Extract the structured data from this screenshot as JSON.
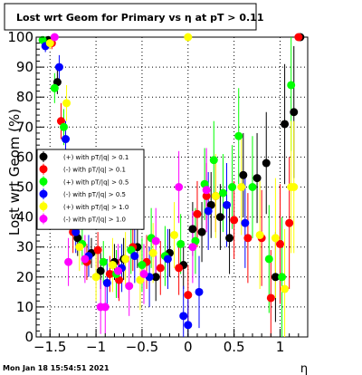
{
  "title": "Lost wrt Geom for Primary vs   η at pT > 0.11",
  "footer": "Mon Jan 18 15:54:51 2021",
  "chart_data": {
    "type": "scatter",
    "xlabel": "η",
    "ylabel": "Lost wrt Geom (%)",
    "xlim": [
      -1.65,
      1.3
    ],
    "ylim": [
      0,
      100
    ],
    "grid": true,
    "legend_position": "left-middle",
    "xticks": [
      -1.5,
      -1,
      -0.5,
      0,
      0.5,
      1
    ],
    "xtick_labels": [
      "−1.5",
      "−1",
      "−0.5",
      "0",
      "0.5",
      "1"
    ],
    "yticks": [
      0,
      10,
      20,
      30,
      40,
      50,
      60,
      70,
      80,
      90,
      100
    ],
    "series": [
      {
        "name": "(+) with pT/|q| > 0.1",
        "color": "#000000",
        "points": [
          {
            "x": -1.52,
            "y": 99,
            "err": 1
          },
          {
            "x": -1.42,
            "y": 85,
            "err": 4
          },
          {
            "x": -1.3,
            "y": 45,
            "err": 6
          },
          {
            "x": -1.2,
            "y": 33,
            "err": 6
          },
          {
            "x": -1.05,
            "y": 28,
            "err": 5
          },
          {
            "x": -0.95,
            "y": 22,
            "err": 6
          },
          {
            "x": -0.8,
            "y": 25,
            "err": 6
          },
          {
            "x": -0.7,
            "y": 26,
            "err": 7
          },
          {
            "x": -0.55,
            "y": 30,
            "err": 7
          },
          {
            "x": -0.35,
            "y": 20,
            "err": 8
          },
          {
            "x": -0.2,
            "y": 28,
            "err": 8
          },
          {
            "x": -0.05,
            "y": 24,
            "err": 8
          },
          {
            "x": 0.05,
            "y": 36,
            "err": 9
          },
          {
            "x": 0.15,
            "y": 35,
            "err": 10
          },
          {
            "x": 0.25,
            "y": 44,
            "err": 11
          },
          {
            "x": 0.35,
            "y": 40,
            "err": 11
          },
          {
            "x": 0.45,
            "y": 33,
            "err": 12
          },
          {
            "x": 0.6,
            "y": 54,
            "err": 14
          },
          {
            "x": 0.75,
            "y": 53,
            "err": 15
          },
          {
            "x": 0.85,
            "y": 58,
            "err": 17
          },
          {
            "x": 0.95,
            "y": 20,
            "err": 15
          },
          {
            "x": 1.05,
            "y": 71,
            "err": 20
          },
          {
            "x": 1.15,
            "y": 75,
            "err": 22
          },
          {
            "x": 1.22,
            "y": 100,
            "err": 0
          }
        ]
      },
      {
        "name": "(-) with pT/|q| > 0.1",
        "color": "#ff0000",
        "points": [
          {
            "x": -1.48,
            "y": 98,
            "err": 2
          },
          {
            "x": -1.38,
            "y": 72,
            "err": 6
          },
          {
            "x": -1.25,
            "y": 35,
            "err": 7
          },
          {
            "x": -1.1,
            "y": 25,
            "err": 6
          },
          {
            "x": -0.98,
            "y": 29,
            "err": 6
          },
          {
            "x": -0.85,
            "y": 21,
            "err": 6
          },
          {
            "x": -0.75,
            "y": 19,
            "err": 7
          },
          {
            "x": -0.6,
            "y": 30,
            "err": 8
          },
          {
            "x": -0.45,
            "y": 25,
            "err": 9
          },
          {
            "x": -0.3,
            "y": 23,
            "err": 9
          },
          {
            "x": -0.1,
            "y": 23,
            "err": 9
          },
          {
            "x": 0.0,
            "y": 14,
            "err": 10
          },
          {
            "x": 0.1,
            "y": 41,
            "err": 11
          },
          {
            "x": 0.2,
            "y": 47,
            "err": 11
          },
          {
            "x": 0.3,
            "y": 47,
            "err": 12
          },
          {
            "x": 0.5,
            "y": 39,
            "err": 13
          },
          {
            "x": 0.65,
            "y": 33,
            "err": 15
          },
          {
            "x": 0.8,
            "y": 33,
            "err": 16
          },
          {
            "x": 0.9,
            "y": 13,
            "err": 16
          },
          {
            "x": 1.0,
            "y": 31,
            "err": 20
          },
          {
            "x": 1.1,
            "y": 38,
            "err": 22
          },
          {
            "x": 1.2,
            "y": 100,
            "err": 0
          }
        ]
      },
      {
        "name": "(+) with pT/|q| > 0.5",
        "color": "#00ff00",
        "points": [
          {
            "x": -1.58,
            "y": 99,
            "err": 1
          },
          {
            "x": -1.45,
            "y": 83,
            "err": 5
          },
          {
            "x": -1.35,
            "y": 70,
            "err": 6
          },
          {
            "x": -1.15,
            "y": 31,
            "err": 7
          },
          {
            "x": -0.92,
            "y": 25,
            "err": 7
          },
          {
            "x": -0.78,
            "y": 21,
            "err": 8
          },
          {
            "x": -0.62,
            "y": 29,
            "err": 8
          },
          {
            "x": -0.5,
            "y": 24,
            "err": 9
          },
          {
            "x": -0.4,
            "y": 33,
            "err": 10
          },
          {
            "x": -0.25,
            "y": 27,
            "err": 10
          },
          {
            "x": -0.08,
            "y": 31,
            "err": 10
          },
          {
            "x": 0.08,
            "y": 32,
            "err": 11
          },
          {
            "x": 0.18,
            "y": 51,
            "err": 12
          },
          {
            "x": 0.28,
            "y": 59,
            "err": 13
          },
          {
            "x": 0.38,
            "y": 48,
            "err": 13
          },
          {
            "x": 0.48,
            "y": 50,
            "err": 14
          },
          {
            "x": 0.55,
            "y": 67,
            "err": 16
          },
          {
            "x": 0.7,
            "y": 50,
            "err": 17
          },
          {
            "x": 0.88,
            "y": 26,
            "err": 18
          },
          {
            "x": 1.02,
            "y": 20,
            "err": 20
          },
          {
            "x": 1.12,
            "y": 84,
            "err": 22
          }
        ]
      },
      {
        "name": "(-) with pT/|q| > 0.5",
        "color": "#0000ff",
        "points": [
          {
            "x": -1.55,
            "y": 97,
            "err": 2
          },
          {
            "x": -1.4,
            "y": 90,
            "err": 4
          },
          {
            "x": -1.33,
            "y": 66,
            "err": 6
          },
          {
            "x": -1.22,
            "y": 35,
            "err": 7
          },
          {
            "x": -1.08,
            "y": 27,
            "err": 7
          },
          {
            "x": -0.88,
            "y": 18,
            "err": 8
          },
          {
            "x": -0.72,
            "y": 23,
            "err": 8
          },
          {
            "x": -0.58,
            "y": 27,
            "err": 9
          },
          {
            "x": -0.42,
            "y": 20,
            "err": 10
          },
          {
            "x": -0.22,
            "y": 26,
            "err": 10
          },
          {
            "x": -0.05,
            "y": 7,
            "err": 10
          },
          {
            "x": 0.0,
            "y": 4,
            "err": 10
          },
          {
            "x": 0.12,
            "y": 15,
            "err": 12
          },
          {
            "x": 0.22,
            "y": 42,
            "err": 13
          },
          {
            "x": 0.42,
            "y": 44,
            "err": 14
          },
          {
            "x": 0.62,
            "y": 38,
            "err": 15
          }
        ]
      },
      {
        "name": "(+) with pT/|q| > 1.0",
        "color": "#ffff00",
        "points": [
          {
            "x": -1.5,
            "y": 98,
            "err": 2
          },
          {
            "x": -1.32,
            "y": 78,
            "err": 6
          },
          {
            "x": -1.18,
            "y": 30,
            "err": 8
          },
          {
            "x": -1.0,
            "y": 20,
            "err": 8
          },
          {
            "x": -0.82,
            "y": 24,
            "err": 9
          },
          {
            "x": -0.68,
            "y": 26,
            "err": 9
          },
          {
            "x": -0.52,
            "y": 19,
            "err": 10
          },
          {
            "x": -0.38,
            "y": 28,
            "err": 10
          },
          {
            "x": -0.15,
            "y": 34,
            "err": 11
          },
          {
            "x": 0.0,
            "y": 100,
            "err": 0
          },
          {
            "x": 0.3,
            "y": 47,
            "err": 14
          },
          {
            "x": 0.58,
            "y": 50,
            "err": 16
          },
          {
            "x": 0.78,
            "y": 34,
            "err": 18
          },
          {
            "x": 0.95,
            "y": 33,
            "err": 20
          },
          {
            "x": 1.05,
            "y": 16,
            "err": 20
          },
          {
            "x": 1.12,
            "y": 50,
            "err": 22
          },
          {
            "x": 1.15,
            "y": 50,
            "err": 22
          }
        ]
      },
      {
        "name": "(-) with pT/|q| > 1.0",
        "color": "#ff00ff",
        "points": [
          {
            "x": -1.45,
            "y": 100,
            "err": 1
          },
          {
            "x": -1.3,
            "y": 25,
            "err": 8
          },
          {
            "x": -1.12,
            "y": 26,
            "err": 8
          },
          {
            "x": -0.95,
            "y": 10,
            "err": 9
          },
          {
            "x": -0.9,
            "y": 10,
            "err": 9
          },
          {
            "x": -0.76,
            "y": 22,
            "err": 9
          },
          {
            "x": -0.64,
            "y": 17,
            "err": 10
          },
          {
            "x": -0.48,
            "y": 21,
            "err": 10
          },
          {
            "x": -0.35,
            "y": 32,
            "err": 11
          },
          {
            "x": -0.1,
            "y": 50,
            "err": 12
          },
          {
            "x": 0.05,
            "y": 30,
            "err": 12
          },
          {
            "x": 0.2,
            "y": 49,
            "err": 14
          }
        ]
      }
    ]
  }
}
